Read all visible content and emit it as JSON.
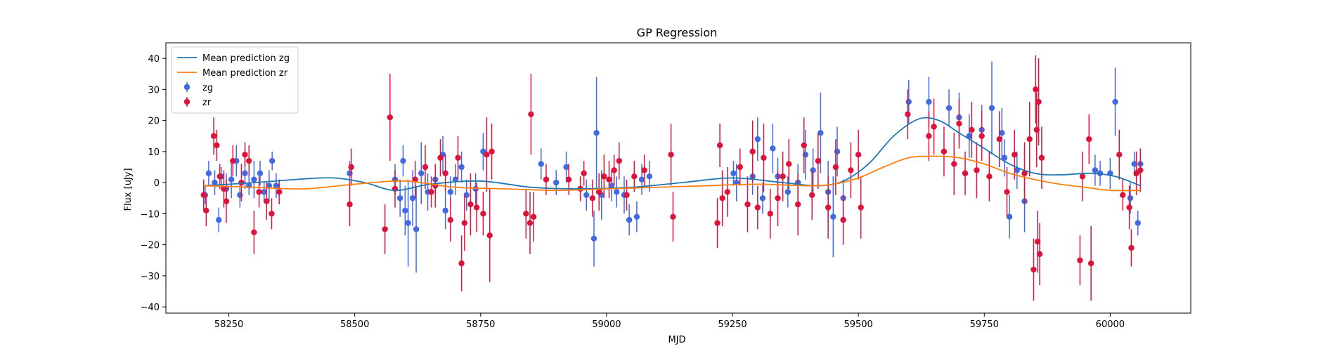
{
  "chart_data": {
    "type": "scatter",
    "title": "GP Regression",
    "xlabel": "MJD",
    "ylabel": "Flux [uJy]",
    "xlim": [
      58125,
      60160
    ],
    "ylim": [
      -42,
      45
    ],
    "x_ticks": [
      58250,
      58500,
      58750,
      59000,
      59250,
      59500,
      59750,
      60000
    ],
    "x_tick_labels": [
      "58250",
      "58500",
      "58750",
      "59000",
      "59250",
      "59500",
      "59750",
      "60000"
    ],
    "y_ticks": [
      -40,
      -30,
      -20,
      -10,
      0,
      10,
      20,
      30,
      40
    ],
    "y_tick_labels": [
      "−40",
      "−30",
      "−20",
      "−10",
      "0",
      "10",
      "20",
      "30",
      "40"
    ],
    "grid": false,
    "legend_position": "top-left",
    "legend": [
      {
        "label": "Mean prediction zg",
        "kind": "line",
        "color": "#1f77b4"
      },
      {
        "label": "Mean prediction zr",
        "kind": "line",
        "color": "#ff7f0e"
      },
      {
        "label": "zg",
        "kind": "errorbar",
        "color": "#4169e1"
      },
      {
        "label": "zr",
        "kind": "errorbar",
        "color": "#dc143c"
      }
    ],
    "series": [
      {
        "name": "Mean prediction zg",
        "kind": "line",
        "color": "#1f77b4",
        "x": [
          58200,
          58300,
          58400,
          58460,
          58520,
          58580,
          58650,
          58750,
          58850,
          58950,
          59050,
          59150,
          59250,
          59350,
          59420,
          59470,
          59520,
          59570,
          59620,
          59660,
          59700,
          59750,
          59800,
          59850,
          59900,
          59960,
          60010,
          60060
        ],
        "y": [
          -1,
          0,
          1.2,
          1.5,
          0,
          -2.5,
          -0.5,
          0.5,
          -1.5,
          -2,
          -1.5,
          0,
          1.5,
          0,
          -1,
          0.5,
          6,
          15,
          20.5,
          20,
          16,
          11,
          6,
          3,
          2.5,
          3,
          2,
          -1
        ]
      },
      {
        "name": "Mean prediction zr",
        "kind": "line",
        "color": "#ff7f0e",
        "x": [
          58200,
          58300,
          58400,
          58500,
          58600,
          58700,
          58800,
          58900,
          59000,
          59100,
          59200,
          59300,
          59400,
          59450,
          59500,
          59550,
          59600,
          59650,
          59700,
          59750,
          59800,
          59850,
          59900,
          59950,
          60000,
          60060
        ],
        "y": [
          -1,
          -1.5,
          -2,
          -0.5,
          0.5,
          -1.5,
          -2,
          -2.5,
          -2,
          -1.5,
          -1,
          -0.5,
          -1,
          -0.5,
          1.5,
          5,
          8,
          8.5,
          8,
          6,
          3,
          1,
          -0.5,
          -1.5,
          -2.5,
          -2.5
        ]
      },
      {
        "name": "zg",
        "kind": "errorbar",
        "color": "#4169e1",
        "points": [
          [
            58203,
            -4,
            3
          ],
          [
            58210,
            3,
            4
          ],
          [
            58222,
            0,
            4
          ],
          [
            58230,
            -12,
            4
          ],
          [
            58235,
            2,
            3
          ],
          [
            58245,
            -2,
            5
          ],
          [
            58255,
            1,
            6
          ],
          [
            58265,
            7,
            5
          ],
          [
            58272,
            -4,
            4
          ],
          [
            58282,
            3,
            5
          ],
          [
            58290,
            -1,
            3
          ],
          [
            58300,
            1,
            6
          ],
          [
            58312,
            3,
            4
          ],
          [
            58320,
            -3,
            3
          ],
          [
            58330,
            -1,
            5
          ],
          [
            58336,
            7,
            3
          ],
          [
            58344,
            -1,
            4
          ],
          [
            58490,
            3,
            4
          ],
          [
            58580,
            1,
            5
          ],
          [
            58590,
            -5,
            6
          ],
          [
            58596,
            7,
            5
          ],
          [
            58600,
            -9,
            8
          ],
          [
            58606,
            -13,
            14
          ],
          [
            58615,
            -5,
            9
          ],
          [
            58622,
            -15,
            14
          ],
          [
            58632,
            3,
            10
          ],
          [
            58645,
            -3,
            6
          ],
          [
            58660,
            1,
            5
          ],
          [
            58675,
            9,
            6
          ],
          [
            58680,
            -9,
            6
          ],
          [
            58690,
            -3,
            5
          ],
          [
            58700,
            1,
            5
          ],
          [
            58712,
            5,
            5
          ],
          [
            58722,
            -4,
            5
          ],
          [
            58740,
            -2,
            5
          ],
          [
            58755,
            10,
            6
          ],
          [
            58870,
            6,
            5
          ],
          [
            58900,
            0,
            4
          ],
          [
            58920,
            5,
            5
          ],
          [
            58960,
            -4,
            5
          ],
          [
            58975,
            -18,
            9
          ],
          [
            58980,
            16,
            18
          ],
          [
            58990,
            -4,
            8
          ],
          [
            59010,
            -1,
            5
          ],
          [
            59020,
            -3,
            5
          ],
          [
            59035,
            -4,
            6
          ],
          [
            59045,
            -12,
            5
          ],
          [
            59060,
            -11,
            5
          ],
          [
            59070,
            1,
            5
          ],
          [
            59085,
            2,
            5
          ],
          [
            59252,
            3,
            4
          ],
          [
            59258,
            0,
            6
          ],
          [
            59290,
            2,
            6
          ],
          [
            59300,
            14,
            7
          ],
          [
            59310,
            -5,
            5
          ],
          [
            59330,
            11,
            8
          ],
          [
            59340,
            2,
            6
          ],
          [
            59360,
            -3,
            5
          ],
          [
            59380,
            0,
            6
          ],
          [
            59395,
            9,
            8
          ],
          [
            59410,
            4,
            7
          ],
          [
            59425,
            16,
            13
          ],
          [
            59440,
            -3,
            10
          ],
          [
            59450,
            -11,
            13
          ],
          [
            59458,
            10,
            8
          ],
          [
            59470,
            -5,
            6
          ],
          [
            59600,
            26,
            7
          ],
          [
            59640,
            26,
            8
          ],
          [
            59680,
            24,
            6
          ],
          [
            59700,
            21,
            8
          ],
          [
            59720,
            15,
            7
          ],
          [
            59745,
            17,
            8
          ],
          [
            59765,
            24,
            15
          ],
          [
            59785,
            16,
            8
          ],
          [
            59790,
            8,
            6
          ],
          [
            59800,
            -11,
            7
          ],
          [
            59815,
            4,
            6
          ],
          [
            59830,
            -6,
            10
          ],
          [
            59970,
            4,
            5
          ],
          [
            59980,
            3,
            4
          ],
          [
            60000,
            3,
            5
          ],
          [
            60010,
            26,
            11
          ],
          [
            60040,
            -5,
            5
          ],
          [
            60048,
            6,
            4
          ],
          [
            60055,
            -13,
            4
          ],
          [
            60060,
            6,
            5
          ]
        ]
      },
      {
        "name": "zr",
        "kind": "errorbar",
        "color": "#dc143c",
        "points": [
          [
            58200,
            -4,
            5
          ],
          [
            58205,
            -9,
            5
          ],
          [
            58220,
            15,
            6
          ],
          [
            58226,
            12,
            5
          ],
          [
            58232,
            2,
            4
          ],
          [
            58240,
            -2,
            6
          ],
          [
            58245,
            -6,
            7
          ],
          [
            58258,
            7,
            5
          ],
          [
            58275,
            0,
            6
          ],
          [
            58282,
            9,
            4
          ],
          [
            58290,
            7,
            5
          ],
          [
            58300,
            -16,
            7
          ],
          [
            58310,
            -3,
            5
          ],
          [
            58325,
            -6,
            6
          ],
          [
            58335,
            -10,
            5
          ],
          [
            58350,
            -3,
            4
          ],
          [
            58490,
            -7,
            7
          ],
          [
            58493,
            5,
            6
          ],
          [
            58560,
            -15,
            8
          ],
          [
            58570,
            21,
            14
          ],
          [
            58580,
            -2,
            6
          ],
          [
            58620,
            1,
            6
          ],
          [
            58640,
            5,
            7
          ],
          [
            58652,
            -3,
            5
          ],
          [
            58660,
            -1,
            7
          ],
          [
            58670,
            8,
            6
          ],
          [
            58680,
            3,
            6
          ],
          [
            58690,
            -12,
            7
          ],
          [
            58705,
            8,
            7
          ],
          [
            58712,
            -26,
            9
          ],
          [
            58718,
            -13,
            9
          ],
          [
            58730,
            -7,
            10
          ],
          [
            58742,
            -8,
            8
          ],
          [
            58755,
            -10,
            7
          ],
          [
            58762,
            9,
            12
          ],
          [
            58768,
            -17,
            15
          ],
          [
            58772,
            10,
            9
          ],
          [
            58840,
            -10,
            8
          ],
          [
            58848,
            -13,
            10
          ],
          [
            58850,
            22,
            13
          ],
          [
            58855,
            -11,
            8
          ],
          [
            58880,
            1,
            5
          ],
          [
            58925,
            1,
            5
          ],
          [
            58948,
            -2,
            4
          ],
          [
            58955,
            3,
            4
          ],
          [
            58972,
            -5,
            6
          ],
          [
            58985,
            -3,
            6
          ],
          [
            58995,
            2,
            7
          ],
          [
            59005,
            1,
            6
          ],
          [
            59015,
            4,
            5
          ],
          [
            59025,
            7,
            6
          ],
          [
            59040,
            -4,
            5
          ],
          [
            59055,
            2,
            5
          ],
          [
            59075,
            4,
            5
          ],
          [
            59128,
            9,
            10
          ],
          [
            59132,
            -11,
            8
          ],
          [
            59220,
            -13,
            8
          ],
          [
            59225,
            12,
            7
          ],
          [
            59230,
            -5,
            9
          ],
          [
            59240,
            -3,
            8
          ],
          [
            59265,
            5,
            6
          ],
          [
            59280,
            -7,
            9
          ],
          [
            59290,
            10,
            10
          ],
          [
            59300,
            -8,
            7
          ],
          [
            59312,
            8,
            11
          ],
          [
            59325,
            -10,
            8
          ],
          [
            59340,
            -5,
            9
          ],
          [
            59350,
            2,
            8
          ],
          [
            59362,
            6,
            8
          ],
          [
            59380,
            -7,
            10
          ],
          [
            59392,
            12,
            9
          ],
          [
            59408,
            -4,
            8
          ],
          [
            59420,
            7,
            9
          ],
          [
            59440,
            -8,
            10
          ],
          [
            59455,
            5,
            9
          ],
          [
            59470,
            -12,
            8
          ],
          [
            59485,
            4,
            9
          ],
          [
            59500,
            9,
            8
          ],
          [
            59505,
            -8,
            10
          ],
          [
            59598,
            22,
            8
          ],
          [
            59640,
            15,
            8
          ],
          [
            59650,
            18,
            9
          ],
          [
            59670,
            10,
            8
          ],
          [
            59690,
            6,
            10
          ],
          [
            59700,
            19,
            8
          ],
          [
            59712,
            3,
            7
          ],
          [
            59725,
            17,
            9
          ],
          [
            59735,
            4,
            9
          ],
          [
            59745,
            15,
            8
          ],
          [
            59760,
            2,
            8
          ],
          [
            59780,
            14,
            9
          ],
          [
            59795,
            -3,
            8
          ],
          [
            59810,
            9,
            8
          ],
          [
            59830,
            3,
            10
          ],
          [
            59840,
            14,
            12
          ],
          [
            59848,
            -28,
            10
          ],
          [
            59852,
            30,
            11
          ],
          [
            59854,
            17,
            12
          ],
          [
            59856,
            -19,
            10
          ],
          [
            59858,
            26,
            14
          ],
          [
            59860,
            -23,
            10
          ],
          [
            59864,
            8,
            10
          ],
          [
            59940,
            -25,
            8
          ],
          [
            59945,
            2,
            8
          ],
          [
            59958,
            14,
            8
          ],
          [
            59962,
            -26,
            12
          ],
          [
            60018,
            9,
            8
          ],
          [
            60025,
            -4,
            5
          ],
          [
            60038,
            -8,
            7
          ],
          [
            60042,
            -21,
            6
          ],
          [
            60052,
            3,
            7
          ],
          [
            60060,
            4,
            7
          ]
        ]
      }
    ]
  }
}
